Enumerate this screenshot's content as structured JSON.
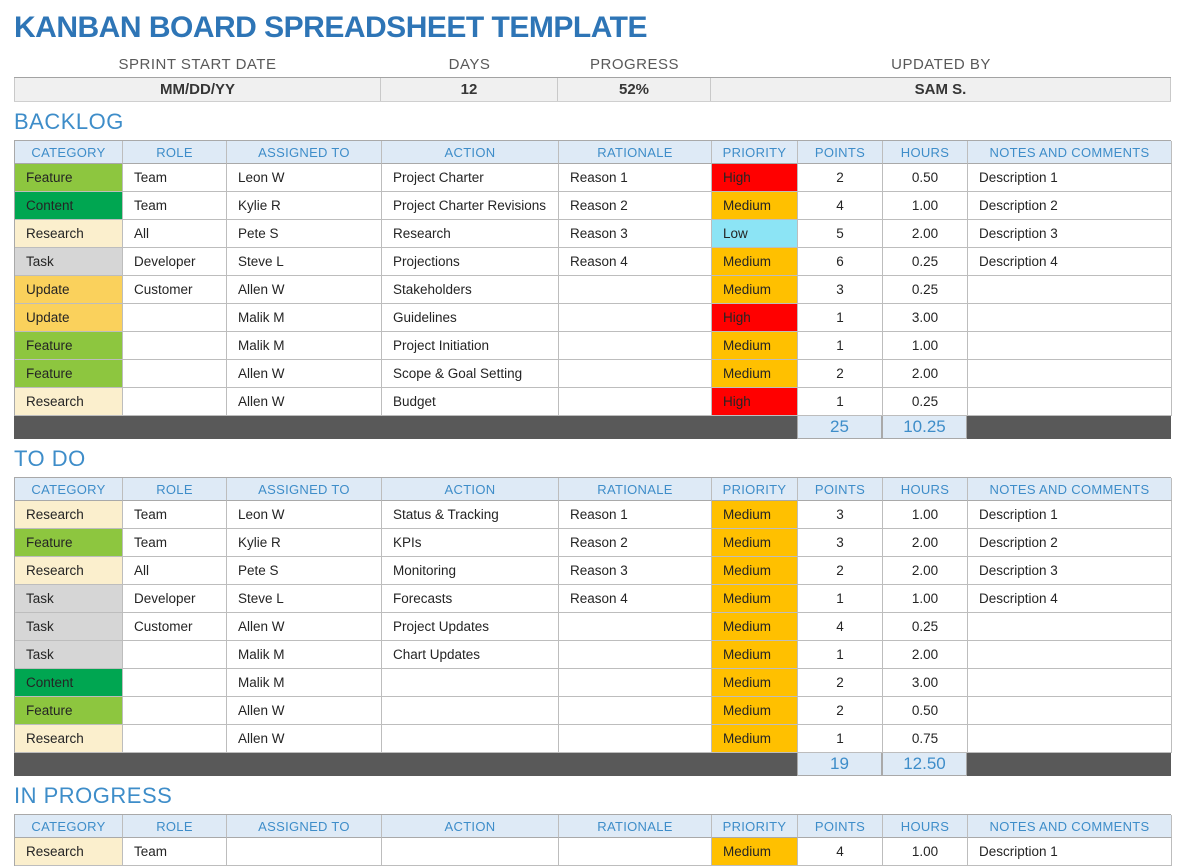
{
  "title": "KANBAN BOARD SPREADSHEET TEMPLATE",
  "info": {
    "labels": [
      "SPRINT START DATE",
      "DAYS",
      "PROGRESS",
      "UPDATED BY"
    ],
    "values": [
      "MM/DD/YY",
      "12",
      "52%",
      "SAM S."
    ]
  },
  "columns": [
    "CATEGORY",
    "ROLE",
    "ASSIGNED TO",
    "ACTION",
    "RATIONALE",
    "PRIORITY",
    "POINTS",
    "HOURS",
    "NOTES AND COMMENTS"
  ],
  "colors": {
    "title_blue": "#2E75B6",
    "section_blue": "#3E8DC9",
    "header_bg": "#DEEAF6",
    "totals_bar": "#595959",
    "category": {
      "Feature": "#8DC63F",
      "Content": "#00A651",
      "Research": "#FBEFCD",
      "Task": "#D6D6D6",
      "Update": "#FAD15C"
    },
    "priority": {
      "High": "#FF0000",
      "Medium": "#FFC000",
      "Low": "#8CE4F5"
    }
  },
  "sections": [
    {
      "name": "BACKLOG",
      "rows": [
        {
          "category": "Feature",
          "role": "Team",
          "assigned": "Leon W",
          "action": "Project Charter",
          "rationale": "Reason 1",
          "priority": "High",
          "points": "2",
          "hours": "0.50",
          "notes": "Description 1"
        },
        {
          "category": "Content",
          "role": "Team",
          "assigned": "Kylie R",
          "action": "Project Charter Revisions",
          "rationale": "Reason 2",
          "priority": "Medium",
          "points": "4",
          "hours": "1.00",
          "notes": "Description 2"
        },
        {
          "category": "Research",
          "role": "All",
          "assigned": "Pete S",
          "action": "Research",
          "rationale": "Reason 3",
          "priority": "Low",
          "points": "5",
          "hours": "2.00",
          "notes": "Description 3"
        },
        {
          "category": "Task",
          "role": "Developer",
          "assigned": "Steve L",
          "action": "Projections",
          "rationale": "Reason 4",
          "priority": "Medium",
          "points": "6",
          "hours": "0.25",
          "notes": "Description 4"
        },
        {
          "category": "Update",
          "role": "Customer",
          "assigned": "Allen W",
          "action": "Stakeholders",
          "rationale": "",
          "priority": "Medium",
          "points": "3",
          "hours": "0.25",
          "notes": ""
        },
        {
          "category": "Update",
          "role": "",
          "assigned": "Malik M",
          "action": "Guidelines",
          "rationale": "",
          "priority": "High",
          "points": "1",
          "hours": "3.00",
          "notes": ""
        },
        {
          "category": "Feature",
          "role": "",
          "assigned": "Malik M",
          "action": "Project Initiation",
          "rationale": "",
          "priority": "Medium",
          "points": "1",
          "hours": "1.00",
          "notes": ""
        },
        {
          "category": "Feature",
          "role": "",
          "assigned": "Allen W",
          "action": "Scope & Goal Setting",
          "rationale": "",
          "priority": "Medium",
          "points": "2",
          "hours": "2.00",
          "notes": ""
        },
        {
          "category": "Research",
          "role": "",
          "assigned": "Allen W",
          "action": "Budget",
          "rationale": "",
          "priority": "High",
          "points": "1",
          "hours": "0.25",
          "notes": ""
        }
      ],
      "totals": {
        "points": "25",
        "hours": "10.25"
      }
    },
    {
      "name": "TO DO",
      "rows": [
        {
          "category": "Research",
          "role": "Team",
          "assigned": "Leon W",
          "action": "Status & Tracking",
          "rationale": "Reason 1",
          "priority": "Medium",
          "points": "3",
          "hours": "1.00",
          "notes": "Description 1"
        },
        {
          "category": "Feature",
          "role": "Team",
          "assigned": "Kylie R",
          "action": "KPIs",
          "rationale": "Reason 2",
          "priority": "Medium",
          "points": "3",
          "hours": "2.00",
          "notes": "Description 2"
        },
        {
          "category": "Research",
          "role": "All",
          "assigned": "Pete S",
          "action": "Monitoring",
          "rationale": "Reason 3",
          "priority": "Medium",
          "points": "2",
          "hours": "2.00",
          "notes": "Description 3"
        },
        {
          "category": "Task",
          "role": "Developer",
          "assigned": "Steve L",
          "action": "Forecasts",
          "rationale": "Reason 4",
          "priority": "Medium",
          "points": "1",
          "hours": "1.00",
          "notes": "Description 4"
        },
        {
          "category": "Task",
          "role": "Customer",
          "assigned": "Allen W",
          "action": "Project Updates",
          "rationale": "",
          "priority": "Medium",
          "points": "4",
          "hours": "0.25",
          "notes": ""
        },
        {
          "category": "Task",
          "role": "",
          "assigned": "Malik M",
          "action": "Chart Updates",
          "rationale": "",
          "priority": "Medium",
          "points": "1",
          "hours": "2.00",
          "notes": ""
        },
        {
          "category": "Content",
          "role": "",
          "assigned": "Malik M",
          "action": "",
          "rationale": "",
          "priority": "Medium",
          "points": "2",
          "hours": "3.00",
          "notes": ""
        },
        {
          "category": "Feature",
          "role": "",
          "assigned": "Allen W",
          "action": "",
          "rationale": "",
          "priority": "Medium",
          "points": "2",
          "hours": "0.50",
          "notes": ""
        },
        {
          "category": "Research",
          "role": "",
          "assigned": "Allen W",
          "action": "",
          "rationale": "",
          "priority": "Medium",
          "points": "1",
          "hours": "0.75",
          "notes": ""
        }
      ],
      "totals": {
        "points": "19",
        "hours": "12.50"
      }
    },
    {
      "name": "IN PROGRESS",
      "rows": [
        {
          "category": "Research",
          "role": "Team",
          "assigned": "",
          "action": "",
          "rationale": "",
          "priority": "Medium",
          "points": "4",
          "hours": "1.00",
          "notes": "Description 1"
        }
      ],
      "totals": null
    }
  ]
}
